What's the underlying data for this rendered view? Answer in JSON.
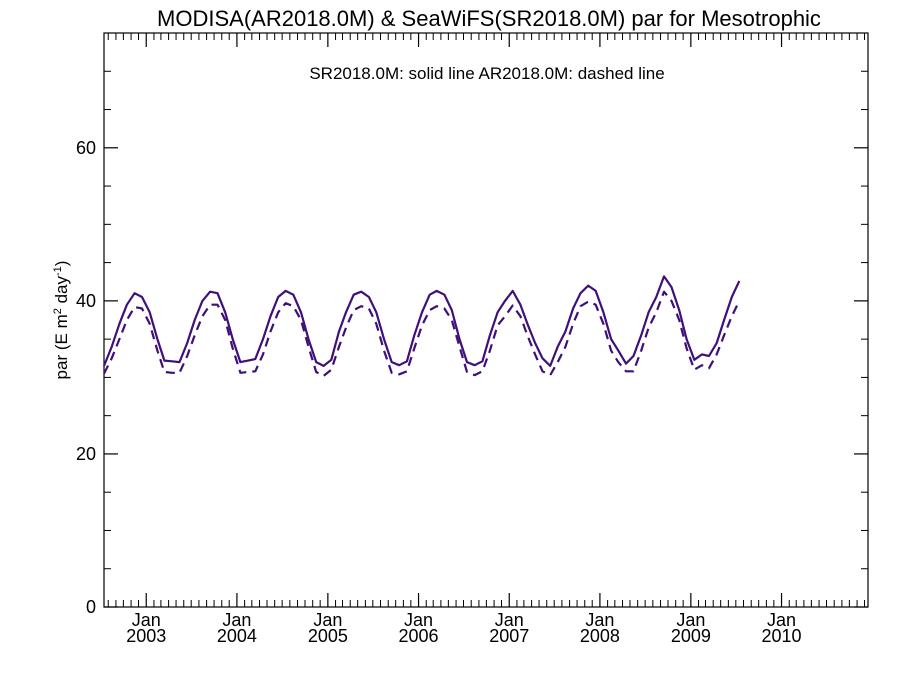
{
  "chart_data": {
    "type": "line",
    "title": "MODISA(AR2018.0M) & SeaWiFS(SR2018.0M)  par for Mesotrophic",
    "annotation": "SR2018.0M: solid line   AR2018.0M: dashed line",
    "ylabel": {
      "prefix": "par (E m",
      "sup1": "2",
      "mid": " day",
      "sup2": "-1",
      "suffix": ")"
    },
    "ylim": [
      0,
      75
    ],
    "yticks_major": [
      0,
      20,
      40,
      60
    ],
    "yticks_minor": [
      5,
      10,
      15,
      25,
      30,
      35,
      45,
      50,
      55,
      65,
      70,
      75
    ],
    "xlim": [
      "2002-07-15",
      "2010-12-15"
    ],
    "xtick_month": "Jan",
    "xtick_dates": [
      "2003-01-01",
      "2004-01-01",
      "2005-01-01",
      "2006-01-01",
      "2007-01-01",
      "2008-01-01",
      "2009-01-01",
      "2010-01-01"
    ],
    "xtick_years": [
      "2003",
      "2004",
      "2005",
      "2006",
      "2007",
      "2008",
      "2009",
      "2010"
    ],
    "line_color": "#3f0f7a",
    "series": [
      {
        "name": "SR2018.0M",
        "style": "solid",
        "start": "2002-07",
        "values": [
          31.5,
          34.0,
          37.0,
          39.5,
          41.0,
          40.5,
          38.5,
          35.0,
          32.2,
          32.1,
          32.0,
          34.5,
          37.5,
          40.0,
          41.2,
          41.0,
          38.5,
          35.0,
          32.0,
          32.2,
          32.4,
          35.0,
          38.0,
          40.5,
          41.3,
          40.8,
          38.5,
          35.0,
          32.0,
          31.5,
          32.3,
          36.0,
          38.5,
          40.8,
          41.2,
          40.5,
          38.5,
          35.0,
          32.0,
          31.6,
          32.1,
          35.5,
          38.5,
          40.8,
          41.3,
          40.8,
          38.8,
          35.0,
          32.0,
          31.6,
          32.1,
          35.5,
          38.5,
          40.0,
          41.3,
          39.5,
          37.0,
          34.5,
          32.5,
          31.5,
          34.0,
          36.0,
          39.0,
          41.0,
          42.0,
          41.3,
          38.5,
          35.0,
          33.5,
          31.8,
          32.8,
          35.5,
          38.5,
          40.5,
          43.2,
          41.8,
          38.8,
          35.0,
          32.3,
          33.0,
          32.8,
          34.5,
          37.5,
          40.5,
          42.6
        ]
      },
      {
        "name": "AR2018.0M",
        "style": "dashed",
        "start": "2002-07",
        "values": [
          30.5,
          32.5,
          35.0,
          37.5,
          39.2,
          39.0,
          37.0,
          33.5,
          30.7,
          30.6,
          30.6,
          32.8,
          35.5,
          38.0,
          39.5,
          39.5,
          37.5,
          33.8,
          30.6,
          30.7,
          30.8,
          33.0,
          36.0,
          38.5,
          39.7,
          39.3,
          37.5,
          34.0,
          30.7,
          30.2,
          31.0,
          34.0,
          36.5,
          38.8,
          39.3,
          39.0,
          37.0,
          33.5,
          30.6,
          30.4,
          30.8,
          33.8,
          36.8,
          38.8,
          39.3,
          39.0,
          37.5,
          34.0,
          30.7,
          30.3,
          30.8,
          33.5,
          36.8,
          38.0,
          39.4,
          38.0,
          35.5,
          33.0,
          30.8,
          30.3,
          32.0,
          34.0,
          37.0,
          39.3,
          39.9,
          39.5,
          37.0,
          33.5,
          32.0,
          30.8,
          30.8,
          33.5,
          36.5,
          38.5,
          41.2,
          40.0,
          37.5,
          33.8,
          31.0,
          31.6,
          31.2,
          33.0,
          35.5,
          38.0,
          40.0
        ]
      }
    ]
  }
}
